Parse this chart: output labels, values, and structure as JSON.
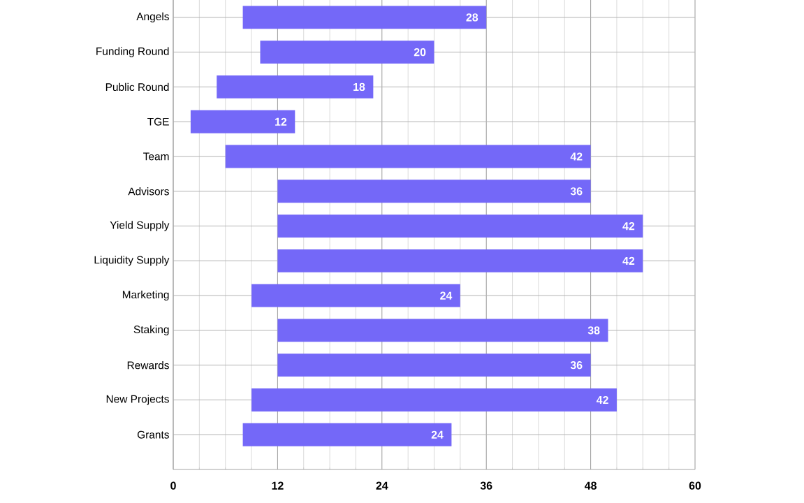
{
  "chart_data": {
    "type": "bar",
    "orientation": "horizontal",
    "categories": [
      "Angels",
      "Funding Round",
      "Public Round",
      "TGE",
      "Team",
      "Advisors",
      "Yield Supply",
      "Liquidity Supply",
      "Marketing",
      "Staking",
      "Rewards",
      "New Projects",
      "Grants"
    ],
    "values": [
      28,
      20,
      18,
      12,
      42,
      36,
      42,
      42,
      24,
      38,
      36,
      42,
      24
    ],
    "base": [
      8,
      10,
      5,
      2,
      6,
      12,
      12,
      12,
      9,
      12,
      12,
      9,
      8
    ],
    "color": "#7468f8",
    "xlim": [
      0,
      60
    ],
    "xticks": [
      0,
      12,
      24,
      36,
      48,
      60
    ],
    "grid": true,
    "data_labels": true
  }
}
